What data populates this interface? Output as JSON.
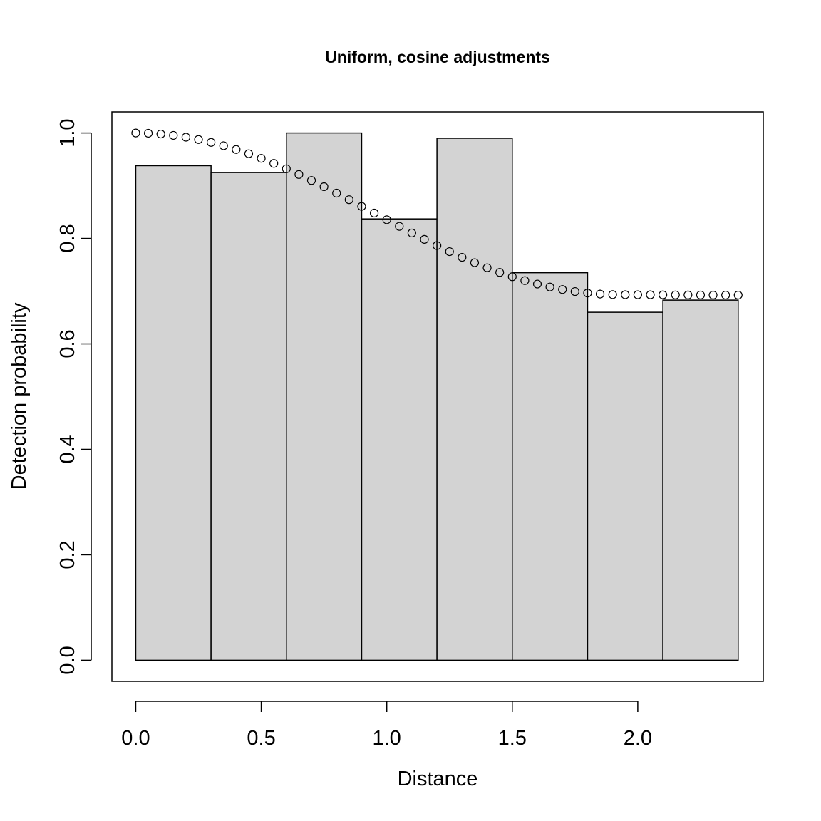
{
  "chart_data": {
    "type": "bar",
    "title": "Uniform, cosine adjustments",
    "xlabel": "Distance",
    "ylabel": "Detection probability",
    "xlim": [
      -0.095,
      2.5
    ],
    "ylim": [
      -0.04,
      1.04
    ],
    "x_ticks": [
      0.0,
      0.5,
      1.0,
      1.5,
      2.0
    ],
    "x_tick_labels": [
      "0.0",
      "0.5",
      "1.0",
      "1.5",
      "2.0"
    ],
    "y_ticks": [
      0.0,
      0.2,
      0.4,
      0.6,
      0.8,
      1.0
    ],
    "y_tick_labels": [
      "0.0",
      "0.2",
      "0.4",
      "0.6",
      "0.8",
      "1.0"
    ],
    "bins": [
      {
        "from": 0.0,
        "to": 0.3,
        "value": 0.938
      },
      {
        "from": 0.3,
        "to": 0.6,
        "value": 0.925
      },
      {
        "from": 0.6,
        "to": 0.9,
        "value": 1.0
      },
      {
        "from": 0.9,
        "to": 1.2,
        "value": 0.837
      },
      {
        "from": 1.2,
        "to": 1.5,
        "value": 0.99
      },
      {
        "from": 1.5,
        "to": 1.8,
        "value": 0.735
      },
      {
        "from": 1.8,
        "to": 2.1,
        "value": 0.66
      },
      {
        "from": 2.1,
        "to": 2.4,
        "value": 0.683
      }
    ],
    "bar_color": "#d3d3d3",
    "series": [
      {
        "marker": "open-circle",
        "x": [
          0.0,
          0.05,
          0.1,
          0.15,
          0.2,
          0.25,
          0.3,
          0.35,
          0.4,
          0.45,
          0.5,
          0.55,
          0.6,
          0.65,
          0.7,
          0.75,
          0.8,
          0.85,
          0.9,
          0.95,
          1.0,
          1.05,
          1.1,
          1.15,
          1.2,
          1.25,
          1.3,
          1.35,
          1.4,
          1.45,
          1.5,
          1.55,
          1.6,
          1.65,
          1.7,
          1.75,
          1.8,
          1.85,
          1.9,
          1.95,
          2.0,
          2.05,
          2.1,
          2.15,
          2.2,
          2.25,
          2.3,
          2.35,
          2.4
        ],
        "y": [
          1.0,
          0.9995,
          0.998,
          0.9955,
          0.992,
          0.9876,
          0.9822,
          0.9759,
          0.9687,
          0.9607,
          0.9519,
          0.9423,
          0.9321,
          0.9213,
          0.9099,
          0.8981,
          0.8859,
          0.8735,
          0.8608,
          0.8481,
          0.8354,
          0.8228,
          0.8103,
          0.7982,
          0.7864,
          0.775,
          0.7642,
          0.754,
          0.7444,
          0.7355,
          0.7274,
          0.72,
          0.7135,
          0.7079,
          0.7031,
          0.6993,
          0.6964,
          0.6945,
          0.6935,
          0.6933,
          0.6932,
          0.6931,
          0.693,
          0.6929,
          0.6928,
          0.6927,
          0.6926,
          0.6925,
          0.6925
        ]
      }
    ],
    "grid": false,
    "legend": "none"
  }
}
